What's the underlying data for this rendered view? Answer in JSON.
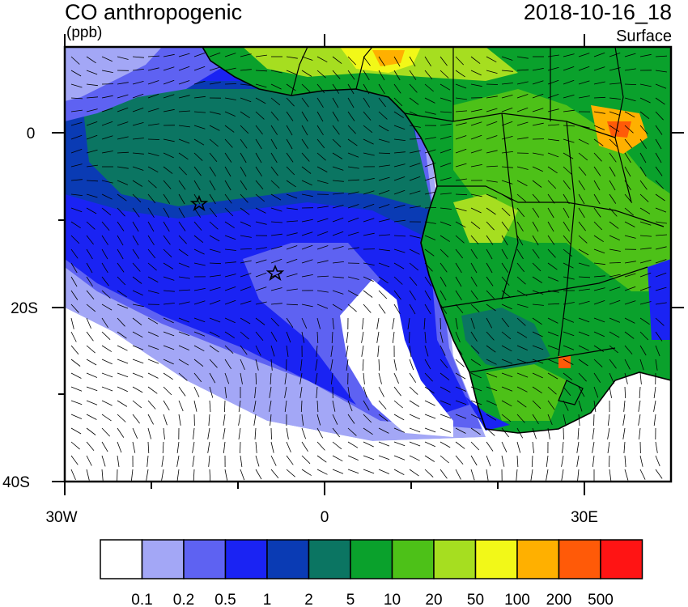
{
  "title": "CO anthropogenic",
  "units": "(ppb)",
  "datetime": "2018-10-16_18",
  "level": "Surface",
  "lat_ticks": [
    "0",
    "20S",
    "40S"
  ],
  "lon_ticks": [
    "30W",
    "0",
    "30E"
  ],
  "colorbar": {
    "colors": [
      "#ffffff",
      "#a3a7f6",
      "#5e62f2",
      "#1a23f3",
      "#0a3bb4",
      "#0b7562",
      "#0aa12c",
      "#4dc118",
      "#a6de20",
      "#f2f818",
      "#ffb000",
      "#ff5a08",
      "#ff1414"
    ],
    "labels": [
      "0.1",
      "0.2",
      "0.5",
      "1",
      "2",
      "5",
      "10",
      "20",
      "50",
      "100",
      "200",
      "500"
    ]
  },
  "markers": [
    "star",
    "star"
  ]
}
